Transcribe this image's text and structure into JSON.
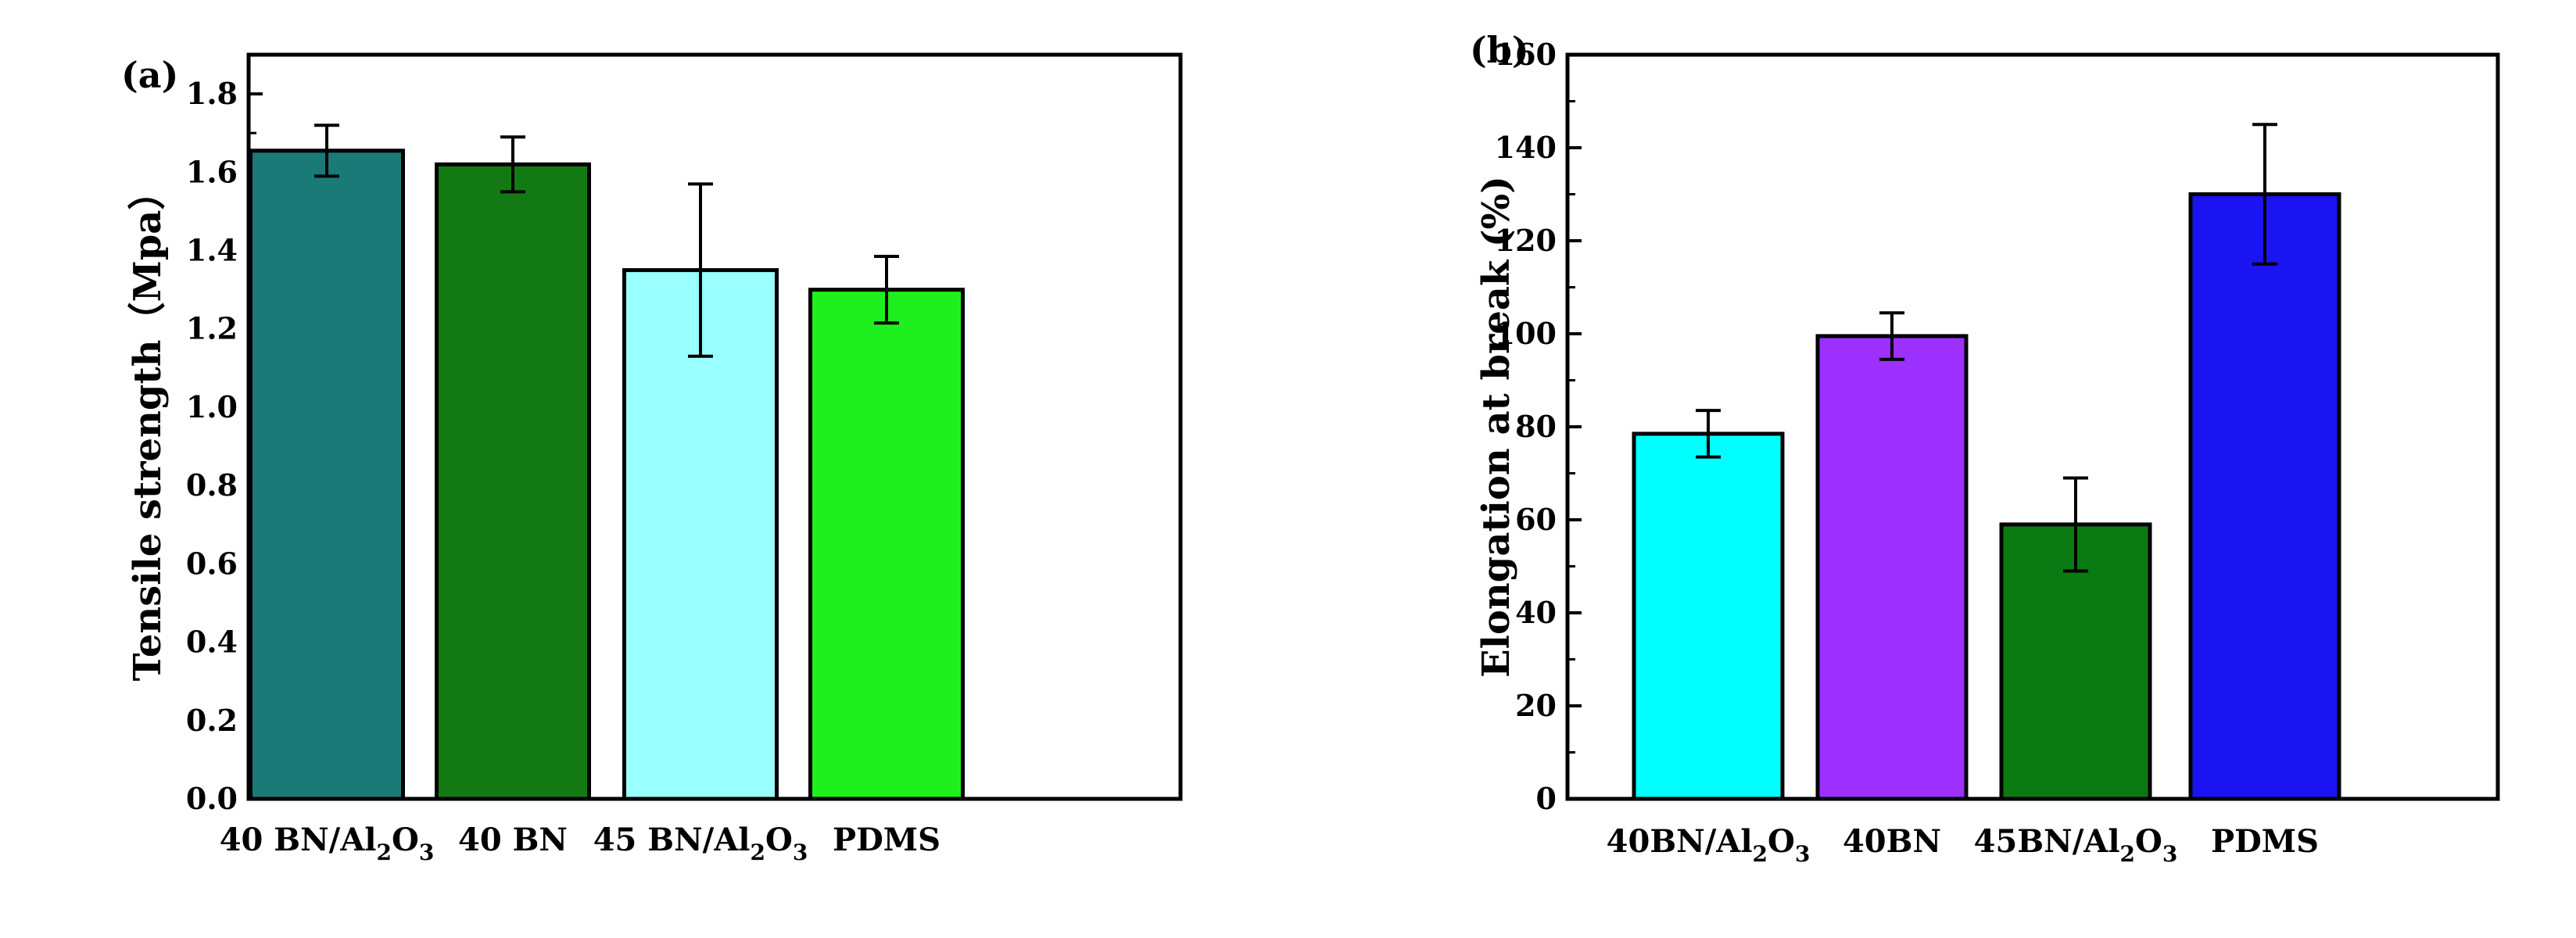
{
  "chart_data": [
    {
      "type": "bar",
      "panel_label": "(a)",
      "title": "",
      "xlabel": "",
      "ylabel": "Tensile strength（Mpa）",
      "ylim": [
        0,
        1.9
      ],
      "yticks": [
        "0.0",
        "0.2",
        "0.4",
        "0.6",
        "0.8",
        "1.0",
        "1.2",
        "1.4",
        "1.6",
        "1.8"
      ],
      "categories": [
        {
          "main": "40 BN/Al",
          "sub1": "2",
          "mid": "O",
          "sub2": "3"
        },
        {
          "main": "40 BN",
          "sub1": "",
          "mid": "",
          "sub2": ""
        },
        {
          "main": "45 BN/Al",
          "sub1": "2",
          "mid": "O",
          "sub2": "3"
        },
        {
          "main": "PDMS",
          "sub1": "",
          "mid": "",
          "sub2": ""
        }
      ],
      "values": [
        1.655,
        1.62,
        1.35,
        1.3
      ],
      "errors": [
        0.065,
        0.07,
        0.22,
        0.085
      ],
      "colors": [
        "#1a7a78",
        "#137a13",
        "#99ffff",
        "#1ef01e"
      ]
    },
    {
      "type": "bar",
      "panel_label": "(b)",
      "title": "",
      "xlabel": "",
      "ylabel": "Elongation at break (%)",
      "ylim": [
        0,
        160
      ],
      "yticks": [
        "0",
        "20",
        "40",
        "60",
        "80",
        "100",
        "120",
        "140",
        "160"
      ],
      "categories": [
        {
          "main": "40BN/Al",
          "sub1": "2",
          "mid": "O",
          "sub2": "3"
        },
        {
          "main": "40BN",
          "sub1": "",
          "mid": "",
          "sub2": ""
        },
        {
          "main": "45BN/Al",
          "sub1": "2",
          "mid": "O",
          "sub2": "3"
        },
        {
          "main": "PDMS",
          "sub1": "",
          "mid": "",
          "sub2": ""
        }
      ],
      "values": [
        78.5,
        99.5,
        59,
        130
      ],
      "errors": [
        5,
        5,
        10,
        15
      ],
      "colors": [
        "#00ffff",
        "#9b30ff",
        "#0a7a12",
        "#1a14f2"
      ]
    }
  ]
}
